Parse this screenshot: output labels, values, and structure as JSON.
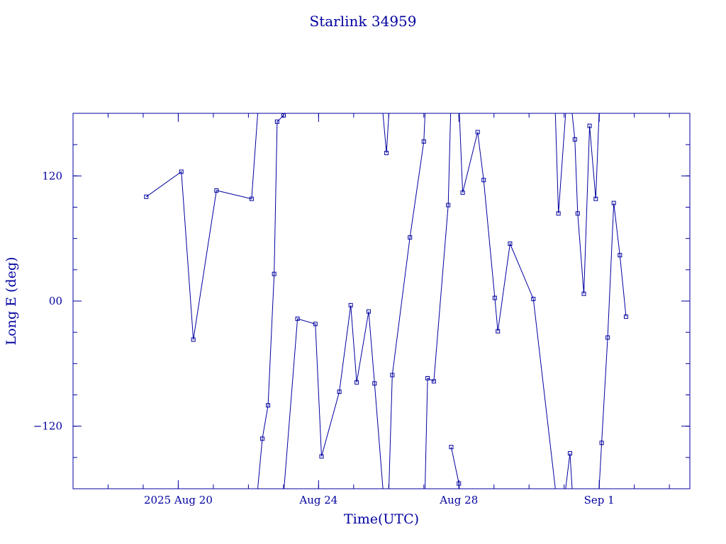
{
  "chart_data": {
    "type": "line",
    "title": "Starlink 34959",
    "xlabel": "Time(UTC)",
    "ylabel": "Long E (deg)",
    "xlim": [
      "2025-08-17T00:00",
      "2025-09-03T14:00"
    ],
    "ylim": [
      -180,
      180
    ],
    "x_ticks": [
      {
        "x": "2025-08-20T00:00",
        "label": "2025 Aug 20"
      },
      {
        "x": "2025-08-24T00:00",
        "label": "Aug 24"
      },
      {
        "x": "2025-08-28T00:00",
        "label": "Aug 28"
      },
      {
        "x": "2025-09-01T00:00",
        "label": "Sep  1"
      }
    ],
    "x_minor_ticks": [
      "2025-08-18T00:00",
      "2025-08-19T00:00",
      "2025-08-20T00:00",
      "2025-08-21T00:00",
      "2025-08-22T00:00",
      "2025-08-23T00:00",
      "2025-08-24T00:00",
      "2025-08-25T00:00",
      "2025-08-26T00:00",
      "2025-08-27T00:00",
      "2025-08-28T00:00",
      "2025-08-29T00:00",
      "2025-08-30T00:00",
      "2025-08-31T00:00",
      "2025-09-01T00:00",
      "2025-09-02T00:00",
      "2025-09-03T00:00"
    ],
    "y_ticks": [
      {
        "y": 120,
        "label": "120"
      },
      {
        "y": 0,
        "label": "00"
      },
      {
        "y": -120,
        "label": "−120"
      }
    ],
    "y_minor_ticks": [
      -150,
      -120,
      -90,
      -60,
      -30,
      0,
      30,
      60,
      90,
      120,
      150
    ],
    "series": [
      {
        "segments": [
          [
            [
              "2025-08-19T02:06",
              100
            ],
            [
              "2025-08-20T02:06",
              124
            ],
            [
              "2025-08-20T10:19",
              -37
            ],
            [
              "2025-08-21T02:08",
              106
            ],
            [
              "2025-08-22T02:11",
              98
            ],
            [
              "2025-08-22T06:20",
              180
            ]
          ],
          [
            [
              "2025-08-22T06:20",
              -180
            ],
            [
              "2025-08-22T09:30",
              -132
            ],
            [
              "2025-08-22T13:26",
              -100
            ],
            [
              "2025-08-22T17:36",
              26
            ],
            [
              "2025-08-22T19:38",
              172
            ],
            [
              "2025-08-23T00:04",
              178
            ],
            [
              "2025-08-23T00:20",
              180
            ]
          ],
          [
            [
              "2025-08-23T00:20",
              -180
            ],
            [
              "2025-08-23T09:33",
              -17
            ],
            [
              "2025-08-23T21:47",
              -22
            ],
            [
              "2025-08-24T02:01",
              -149
            ],
            [
              "2025-08-24T14:12",
              -87
            ],
            [
              "2025-08-24T22:00",
              -4
            ],
            [
              "2025-08-25T02:05",
              -78
            ],
            [
              "2025-08-25T10:16",
              -10
            ],
            [
              "2025-08-25T14:17",
              -79
            ],
            [
              "2025-08-25T20:00",
              -180
            ]
          ],
          [
            [
              "2025-08-25T20:00",
              180
            ],
            [
              "2025-08-25T22:27",
              142
            ],
            [
              "2025-08-26T00:05",
              180
            ]
          ],
          [
            [
              "2025-08-26T00:05",
              -180
            ],
            [
              "2025-08-26T02:25",
              -71
            ],
            [
              "2025-08-26T14:30",
              61
            ],
            [
              "2025-08-27T00:00",
              153
            ],
            [
              "2025-08-27T00:50",
              180
            ]
          ],
          [
            [
              "2025-08-27T00:50",
              -180
            ],
            [
              "2025-08-27T02:35",
              -74
            ],
            [
              "2025-08-27T06:51",
              -77
            ],
            [
              "2025-08-27T16:41",
              92
            ],
            [
              "2025-08-27T18:20",
              180
            ]
          ]
        ]
      },
      {
        "segments": [
          [
            [
              "2025-08-27T18:45",
              -140
            ],
            [
              "2025-08-28T00:00",
              -175
            ],
            [
              "2025-08-28T00:18",
              -180
            ]
          ],
          [
            [
              "2025-08-28T00:18",
              180
            ],
            [
              "2025-08-28T02:35",
              104
            ],
            [
              "2025-08-28T12:50",
              162
            ],
            [
              "2025-08-28T16:57",
              116
            ],
            [
              "2025-08-29T00:33",
              3
            ],
            [
              "2025-08-29T02:40",
              -29
            ],
            [
              "2025-08-29T10:59",
              55
            ],
            [
              "2025-08-30T02:56",
              2
            ],
            [
              "2025-08-30T18:00",
              -180
            ]
          ],
          [
            [
              "2025-08-30T18:00",
              180
            ],
            [
              "2025-08-30T20:06",
              84
            ],
            [
              "2025-08-31T01:00",
              180
            ]
          ],
          [
            [
              "2025-08-31T01:00",
              -180
            ],
            [
              "2025-08-31T04:00",
              -146
            ],
            [
              "2025-08-31T05:30",
              -180
            ]
          ],
          [
            [
              "2025-08-31T05:30",
              180
            ],
            [
              "2025-08-31T07:20",
              155
            ],
            [
              "2025-08-31T09:16",
              84
            ],
            [
              "2025-08-31T13:30",
              7
            ],
            [
              "2025-08-31T17:24",
              168
            ],
            [
              "2025-08-31T21:38",
              98
            ],
            [
              "2025-08-31T23:55",
              180
            ]
          ],
          [
            [
              "2025-08-31T23:55",
              -180
            ],
            [
              "2025-09-01T01:40",
              -136
            ],
            [
              "2025-09-01T05:48",
              -35
            ],
            [
              "2025-09-01T09:58",
              94
            ],
            [
              "2025-09-01T14:08",
              44
            ],
            [
              "2025-09-01T18:20",
              -15
            ]
          ]
        ]
      }
    ]
  }
}
